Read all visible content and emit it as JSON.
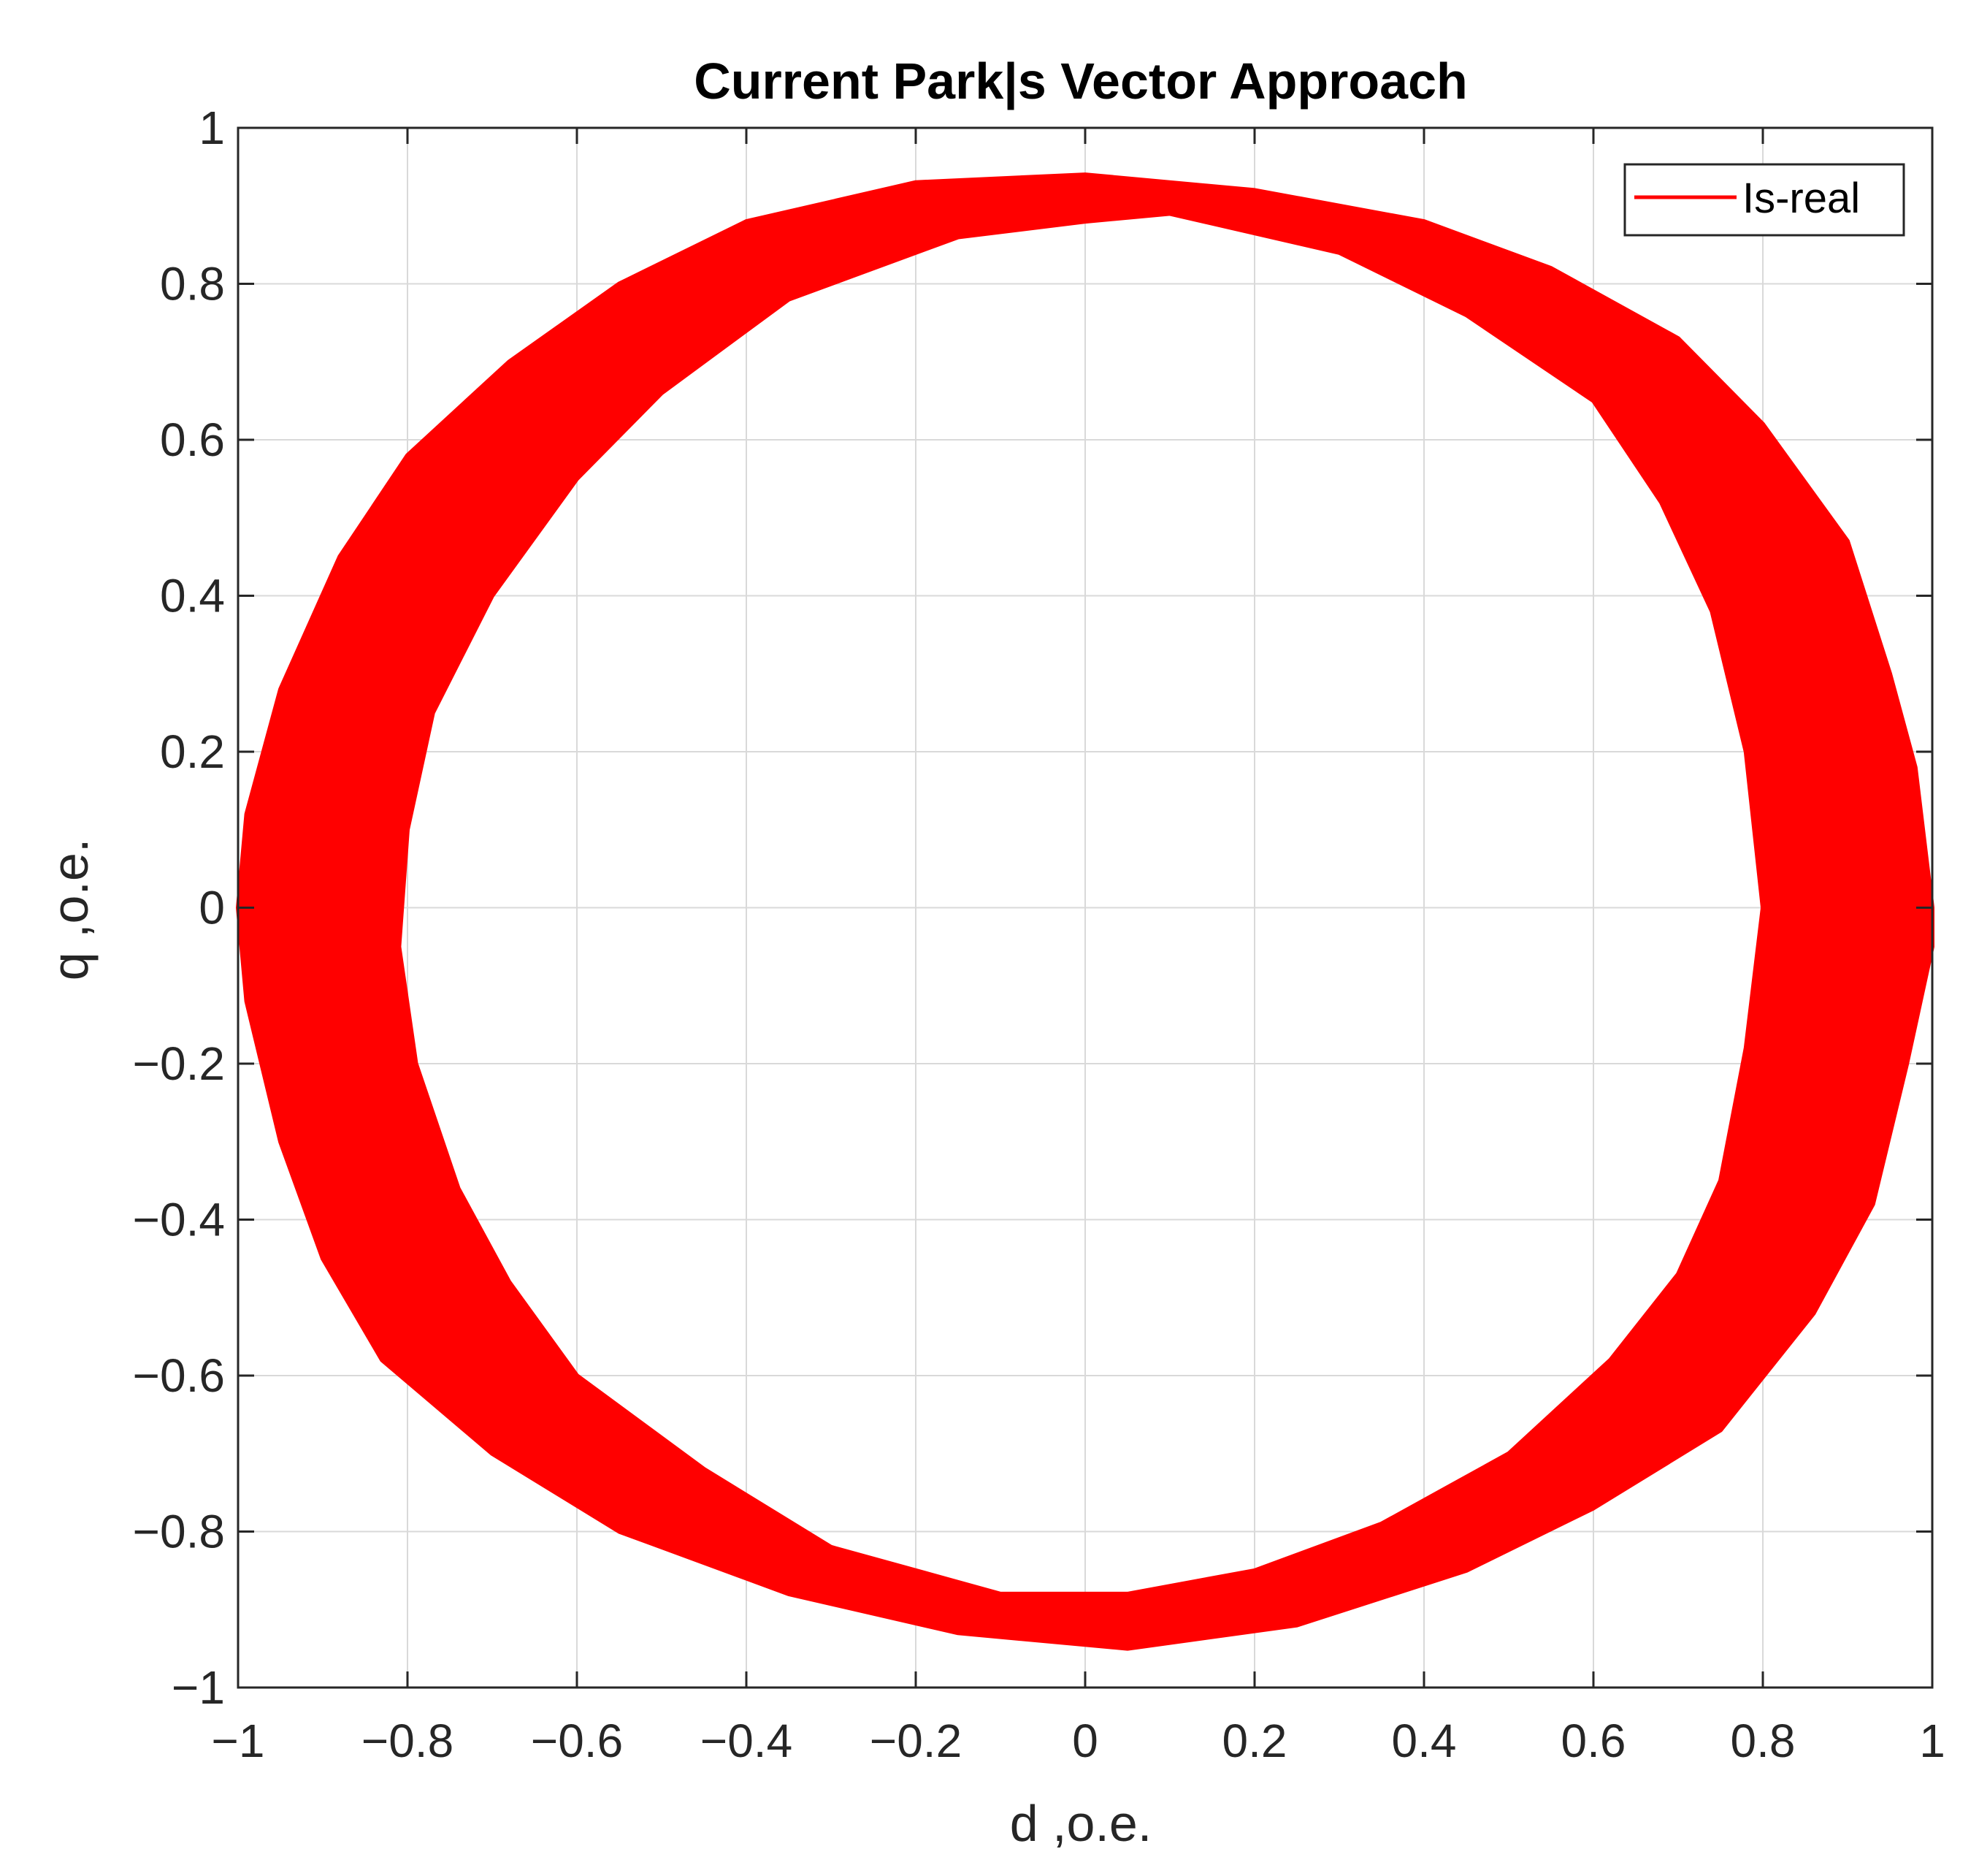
{
  "chart_data": {
    "type": "line",
    "title": "Current Park|s Vector Approach",
    "xlabel": "d ,o.e.",
    "ylabel": "q ,o.e.",
    "xlim": [
      -1,
      1
    ],
    "ylim": [
      -1,
      1
    ],
    "xticks": [
      -1,
      -0.8,
      -0.6,
      -0.4,
      -0.2,
      0,
      0.2,
      0.4,
      0.6,
      0.8,
      1
    ],
    "yticks": [
      -1,
      -0.8,
      -0.6,
      -0.4,
      -0.2,
      0,
      0.2,
      0.4,
      0.6,
      0.8,
      1
    ],
    "xtick_labels": [
      "−1",
      "−0.8",
      "−0.6",
      "−0.4",
      "−0.2",
      "0",
      "0.2",
      "0.4",
      "0.6",
      "0.8",
      "1"
    ],
    "ytick_labels": [
      "−1",
      "−0.8",
      "−0.6",
      "−0.4",
      "−0.2",
      "0",
      "0.2",
      "0.4",
      "0.6",
      "0.8",
      "1"
    ],
    "grid": true,
    "legend_position": "top-right",
    "series": [
      {
        "name": "Is-real",
        "color": "#ff0000",
        "outer_boundary": [
          [
            1.0,
            0.0
          ],
          [
            0.98,
            0.18
          ],
          [
            0.95,
            0.3
          ],
          [
            0.9,
            0.47
          ],
          [
            0.8,
            0.62
          ],
          [
            0.7,
            0.73
          ],
          [
            0.55,
            0.82
          ],
          [
            0.4,
            0.88
          ],
          [
            0.2,
            0.92
          ],
          [
            0.0,
            0.94
          ],
          [
            -0.2,
            0.93
          ],
          [
            -0.4,
            0.88
          ],
          [
            -0.55,
            0.8
          ],
          [
            -0.68,
            0.7
          ],
          [
            -0.8,
            0.58
          ],
          [
            -0.88,
            0.45
          ],
          [
            -0.95,
            0.28
          ],
          [
            -0.99,
            0.12
          ],
          [
            -1.0,
            0.0
          ],
          [
            -0.99,
            -0.12
          ],
          [
            -0.95,
            -0.3
          ],
          [
            -0.9,
            -0.45
          ],
          [
            -0.83,
            -0.58
          ],
          [
            -0.7,
            -0.7
          ],
          [
            -0.55,
            -0.8
          ],
          [
            -0.35,
            -0.88
          ],
          [
            -0.15,
            -0.93
          ],
          [
            0.05,
            -0.95
          ],
          [
            0.25,
            -0.92
          ],
          [
            0.45,
            -0.85
          ],
          [
            0.6,
            -0.77
          ],
          [
            0.75,
            -0.67
          ],
          [
            0.86,
            -0.52
          ],
          [
            0.93,
            -0.38
          ],
          [
            0.97,
            -0.2
          ],
          [
            1.0,
            -0.05
          ]
        ],
        "inner_boundary": [
          [
            0.8,
            0.0
          ],
          [
            0.78,
            0.2
          ],
          [
            0.74,
            0.38
          ],
          [
            0.68,
            0.52
          ],
          [
            0.6,
            0.65
          ],
          [
            0.45,
            0.76
          ],
          [
            0.3,
            0.84
          ],
          [
            0.1,
            0.89
          ],
          [
            0.0,
            0.88
          ],
          [
            -0.15,
            0.86
          ],
          [
            -0.35,
            0.78
          ],
          [
            -0.5,
            0.66
          ],
          [
            -0.6,
            0.55
          ],
          [
            -0.7,
            0.4
          ],
          [
            -0.77,
            0.25
          ],
          [
            -0.8,
            0.1
          ],
          [
            -0.81,
            -0.05
          ],
          [
            -0.79,
            -0.2
          ],
          [
            -0.74,
            -0.36
          ],
          [
            -0.68,
            -0.48
          ],
          [
            -0.6,
            -0.6
          ],
          [
            -0.45,
            -0.72
          ],
          [
            -0.3,
            -0.82
          ],
          [
            -0.1,
            -0.88
          ],
          [
            0.05,
            -0.88
          ],
          [
            0.2,
            -0.85
          ],
          [
            0.35,
            -0.79
          ],
          [
            0.5,
            -0.7
          ],
          [
            0.62,
            -0.58
          ],
          [
            0.7,
            -0.47
          ],
          [
            0.75,
            -0.35
          ],
          [
            0.78,
            -0.18
          ]
        ]
      }
    ]
  }
}
